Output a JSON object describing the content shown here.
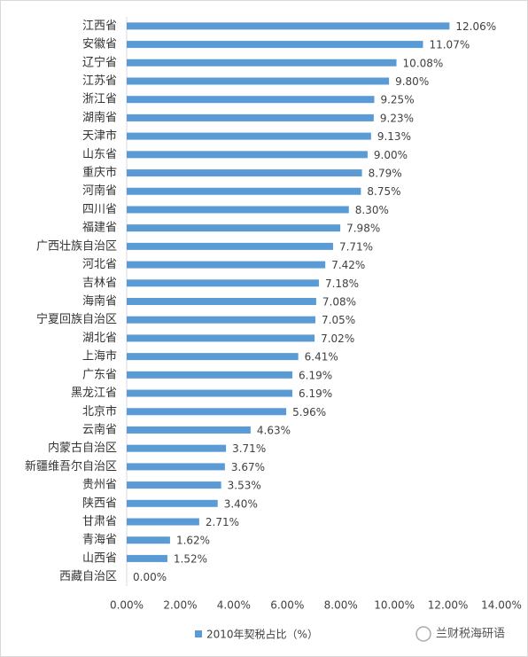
{
  "chart_data": {
    "type": "bar",
    "orientation": "horizontal",
    "categories": [
      "江西省",
      "安徽省",
      "辽宁省",
      "江苏省",
      "浙江省",
      "湖南省",
      "天津市",
      "山东省",
      "重庆市",
      "河南省",
      "四川省",
      "福建省",
      "广西壮族自治区",
      "河北省",
      "吉林省",
      "海南省",
      "宁夏回族自治区",
      "湖北省",
      "上海市",
      "广东省",
      "黑龙江省",
      "北京市",
      "云南省",
      "内蒙古自治区",
      "新疆维吾尔自治区",
      "贵州省",
      "陕西省",
      "甘肃省",
      "青海省",
      "山西省",
      "西藏自治区"
    ],
    "series": [
      {
        "name": "2010年契税占比（%）",
        "color": "#5b9bd5",
        "values": [
          12.06,
          11.07,
          10.08,
          9.8,
          9.25,
          9.23,
          9.13,
          9.0,
          8.79,
          8.75,
          8.3,
          7.98,
          7.71,
          7.42,
          7.18,
          7.08,
          7.05,
          7.02,
          6.41,
          6.19,
          6.19,
          5.96,
          4.63,
          3.71,
          3.67,
          3.53,
          3.4,
          2.71,
          1.62,
          1.52,
          0.0
        ],
        "value_labels": [
          "12.06%",
          "11.07%",
          "10.08%",
          "9.80%",
          "9.25%",
          "9.23%",
          "9.13%",
          "9.00%",
          "8.79%",
          "8.75%",
          "8.30%",
          "7.98%",
          "7.71%",
          "7.42%",
          "7.18%",
          "7.08%",
          "7.05%",
          "7.02%",
          "6.41%",
          "6.19%",
          "6.19%",
          "5.96%",
          "4.63%",
          "3.71%",
          "3.67%",
          "3.53%",
          "3.40%",
          "2.71%",
          "1.62%",
          "1.52%",
          "0.00%"
        ]
      }
    ],
    "xlim": [
      0,
      14
    ],
    "xticks": [
      {
        "value": 0,
        "label": "0.00%"
      },
      {
        "value": 2,
        "label": "2.00%"
      },
      {
        "value": 4,
        "label": "4.00%"
      },
      {
        "value": 6,
        "label": "6.00%"
      },
      {
        "value": 8,
        "label": "8.00%"
      },
      {
        "value": 10,
        "label": "10.00%"
      },
      {
        "value": 12,
        "label": "12.00%"
      },
      {
        "value": 14,
        "label": "14.00%"
      }
    ],
    "grid": false,
    "legend": "bottom"
  },
  "watermark": "兰财税海研语"
}
